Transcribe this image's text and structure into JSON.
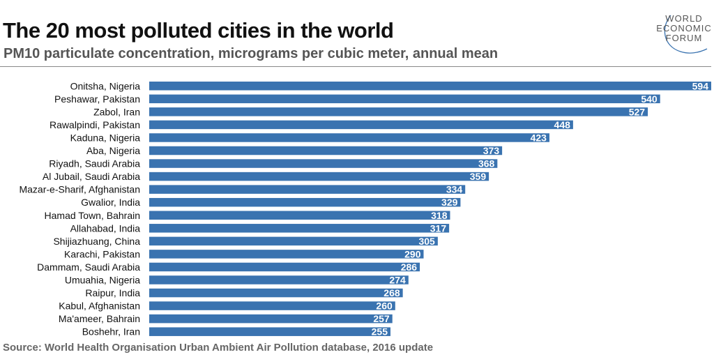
{
  "title": "The 20 most polluted cities in the world",
  "subtitle": "PM10 particulate concentration, micrograms per cubic meter, annual mean",
  "source": "Source: World Health Organisation Urban Ambient Air Pollution database, 2016 update",
  "logo": {
    "line1": "WORLD",
    "line2": "ECONOMIC",
    "line3": "FORUM"
  },
  "colors": {
    "bar": "#3a73b0",
    "label": "#ffffff"
  },
  "chart_data": {
    "type": "bar",
    "orientation": "horizontal",
    "title": "The 20 most polluted cities in the world",
    "categories": [
      "Onitsha, Nigeria",
      "Peshawar, Pakistan",
      "Zabol, Iran",
      "Rawalpindi, Pakistan",
      "Kaduna, Nigeria",
      "Aba, Nigeria",
      "Riyadh, Saudi Arabia",
      "Al Jubail, Saudi Arabia",
      "Mazar-e-Sharif, Afghanistan",
      "Gwalior, India",
      "Hamad Town, Bahrain",
      "Allahabad, India",
      "Shijiazhuang, China",
      "Karachi, Pakistan",
      "Dammam, Saudi Arabia",
      "Umuahia, Nigeria",
      "Raipur, India",
      "Kabul, Afghanistan",
      "Ma'ameer, Bahrain",
      "Boshehr, Iran"
    ],
    "values": [
      594,
      540,
      527,
      448,
      423,
      373,
      368,
      359,
      334,
      329,
      318,
      317,
      305,
      290,
      286,
      274,
      268,
      260,
      257,
      255
    ],
    "xlim": [
      0,
      594
    ],
    "grid": false,
    "data_labels": "inside-end"
  }
}
